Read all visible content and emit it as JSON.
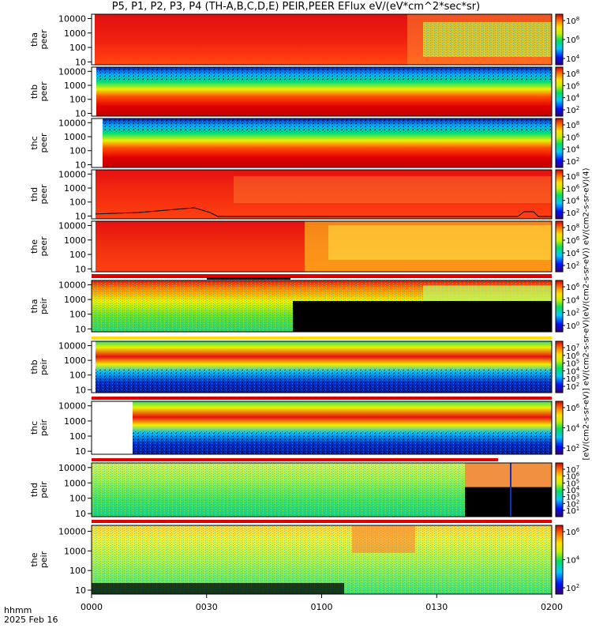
{
  "chart_data": {
    "type": "heatmap",
    "title": "P5, P1, P2, P3, P4 (TH-A,B,C,D,E) PEIR,PEER EFlux eV/(eV*cm^2*sec*sr)",
    "x_ticks": [
      "0000",
      "0030",
      "0100",
      "0130",
      "0200"
    ],
    "x_range": [
      "0000",
      "0200"
    ],
    "footer_hhmm": "hhmm",
    "footer_date": "2025 Feb 16",
    "colorbar_label": "[eV/(cm2-s-sr-eV)] eV/(cm2-s-sr-eV)(eV/(cm2-s-sr-eV)) eV/(cm2-s-sr-eV)(4)",
    "y_ticks": [
      "10000",
      "1000",
      "100",
      "10"
    ],
    "panels": [
      {
        "probe": "tha",
        "species": "peer",
        "ylabel": "tha\npeer",
        "cbar_ticks": [
          "10^8",
          "10^6",
          "10^4"
        ],
        "pattern": "peer_red_top"
      },
      {
        "probe": "thb",
        "species": "peer",
        "ylabel": "thb\npeer",
        "cbar_ticks": [
          "10^8",
          "10^6",
          "10^4",
          "10^2"
        ],
        "pattern": "peer_band"
      },
      {
        "probe": "thc",
        "species": "peer",
        "ylabel": "thc\npeer",
        "cbar_ticks": [
          "10^8",
          "10^6",
          "10^4",
          "10^2"
        ],
        "pattern": "peer_band"
      },
      {
        "probe": "thd",
        "species": "peer",
        "ylabel": "thd\npeer",
        "cbar_ticks": [
          "10^8",
          "10^6",
          "10^4",
          "10^2"
        ],
        "pattern": "peer_red"
      },
      {
        "probe": "the",
        "species": "peer",
        "ylabel": "the\npeer",
        "cbar_ticks": [
          "10^8",
          "10^6",
          "10^4",
          "10^2"
        ],
        "pattern": "peer_red_yellow"
      },
      {
        "probe": "tha",
        "species": "peir",
        "ylabel": "tha\npeir",
        "cbar_ticks": [
          "10^6",
          "10^4",
          "10^2",
          "10^0"
        ],
        "pattern": "peir_black_late"
      },
      {
        "probe": "thb",
        "species": "peir",
        "ylabel": "thb\npeir",
        "cbar_ticks": [
          "10^7",
          "10^6",
          "10^5",
          "10^4",
          "10^3",
          "10^2"
        ],
        "pattern": "peir_band"
      },
      {
        "probe": "thc",
        "species": "peir",
        "ylabel": "thc\npeir",
        "cbar_ticks": [
          "10^6",
          "10^4",
          "10^2"
        ],
        "pattern": "peir_band"
      },
      {
        "probe": "thd",
        "species": "peir",
        "ylabel": "thd\npeir",
        "cbar_ticks": [
          "10^7",
          "10^6",
          "10^5",
          "10^4",
          "10^3",
          "10^2",
          "10^1"
        ],
        "pattern": "peir_green_late_black"
      },
      {
        "probe": "the",
        "species": "peir",
        "ylabel": "the\npeir",
        "cbar_ticks": [
          "10^6",
          "10^4",
          "10^2"
        ],
        "pattern": "peir_green_yellow"
      }
    ]
  }
}
